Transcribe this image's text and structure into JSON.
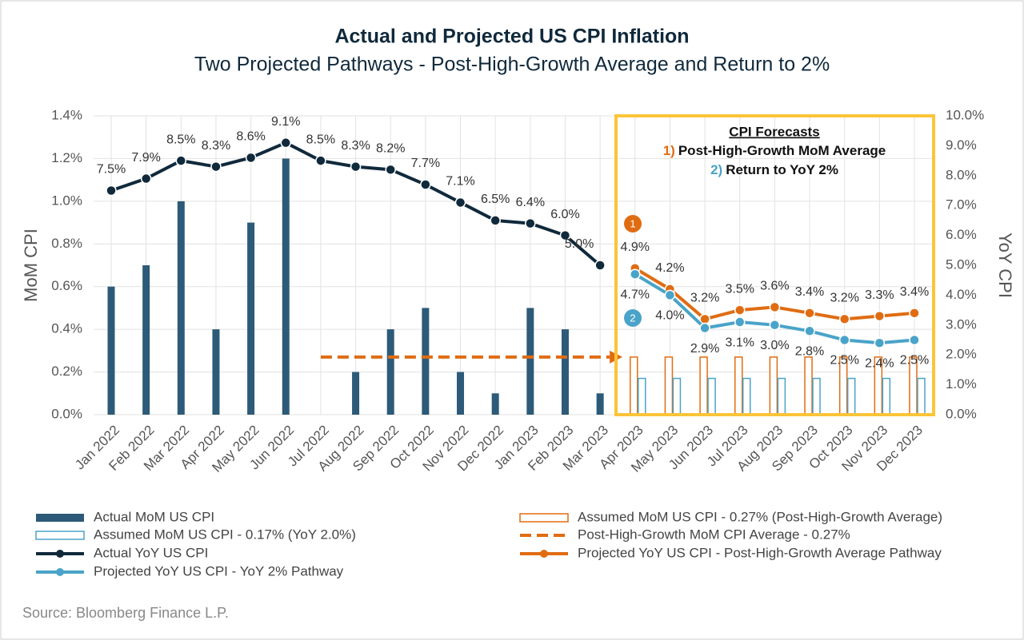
{
  "chart_data": {
    "type": "bar",
    "title": "Actual and Projected US CPI Inflation",
    "subtitle": "Two Projected Pathways - Post-High-Growth Average and Return to 2%",
    "y_label": "MoM CPI",
    "y2_label": "YoY CPI",
    "source": "Source: Bloomberg Finance L.P.",
    "categories": [
      "Jan 2022",
      "Feb 2022",
      "Mar 2022",
      "Apr 2022",
      "May 2022",
      "Jun 2022",
      "Jul 2022",
      "Aug 2022",
      "Sep 2022",
      "Oct 2022",
      "Nov 2022",
      "Dec 2022",
      "Jan 2023",
      "Feb 2023",
      "Mar 2023",
      "Apr 2023",
      "May 2023",
      "Jun 2023",
      "Jul 2023",
      "Aug 2023",
      "Sep 2023",
      "Oct 2023",
      "Nov 2023",
      "Dec 2023"
    ],
    "ylim": [
      0,
      1.4
    ],
    "yticks": [
      {
        "value": 0,
        "label": "0.0%"
      },
      {
        "value": 0.2,
        "label": "0.2%"
      },
      {
        "value": 0.4,
        "label": "0.4%"
      },
      {
        "value": 0.6,
        "label": "0.6%"
      },
      {
        "value": 0.8,
        "label": "0.8%"
      },
      {
        "value": 1.0,
        "label": "1.0%"
      },
      {
        "value": 1.2,
        "label": "1.2%"
      },
      {
        "value": 1.4,
        "label": "1.4%"
      }
    ],
    "y2lim": [
      0,
      10
    ],
    "y2ticks": [
      {
        "value": 0,
        "label": "0.0%"
      },
      {
        "value": 1,
        "label": "1.0%"
      },
      {
        "value": 2,
        "label": "2.0%"
      },
      {
        "value": 3,
        "label": "3.0%"
      },
      {
        "value": 4,
        "label": "4.0%"
      },
      {
        "value": 5,
        "label": "5.0%"
      },
      {
        "value": 6,
        "label": "6.0%"
      },
      {
        "value": 7,
        "label": "7.0%"
      },
      {
        "value": 8,
        "label": "8.0%"
      },
      {
        "value": 9,
        "label": "9.0%"
      },
      {
        "value": 10,
        "label": "10.0%"
      }
    ],
    "grid": true,
    "series": [
      {
        "name": "Actual MoM US CPI",
        "type": "bar",
        "color": "#2d5a78",
        "values": [
          0.6,
          0.7,
          1.0,
          0.4,
          0.9,
          1.2,
          0,
          0.2,
          0.4,
          0.5,
          0.2,
          0.1,
          0.5,
          0.4,
          0.1,
          null,
          null,
          null,
          null,
          null,
          null,
          null,
          null,
          null
        ]
      },
      {
        "name": "Assumed MoM US CPI - 0.27% (Post-High-Growth Average)",
        "type": "outline-bar",
        "color": "#e06c12",
        "values": [
          null,
          null,
          null,
          null,
          null,
          null,
          null,
          null,
          null,
          null,
          null,
          null,
          null,
          null,
          null,
          0.27,
          0.27,
          0.27,
          0.27,
          0.27,
          0.27,
          0.27,
          0.27,
          0.27
        ]
      },
      {
        "name": "Assumed MoM US CPI - 0.17% (YoY 2.0%)",
        "type": "outline-bar",
        "color": "#4aa3c8",
        "values": [
          null,
          null,
          null,
          null,
          null,
          null,
          null,
          null,
          null,
          null,
          null,
          null,
          null,
          null,
          null,
          0.17,
          0.17,
          0.17,
          0.17,
          0.17,
          0.17,
          0.17,
          0.17,
          0.17
        ]
      },
      {
        "name": "Actual YoY US CPI",
        "type": "line",
        "axis": "y2",
        "color": "#10293b",
        "values": [
          7.5,
          7.9,
          8.5,
          8.3,
          8.6,
          9.1,
          8.5,
          8.3,
          8.2,
          7.7,
          7.1,
          6.5,
          6.4,
          6.0,
          5.0,
          null,
          null,
          null,
          null,
          null,
          null,
          null,
          null,
          null
        ],
        "value_labels": [
          "7.5%",
          "7.9%",
          "8.5%",
          "8.3%",
          "8.6%",
          "9.1%",
          "8.5%",
          "8.3%",
          "8.2%",
          "7.7%",
          "7.1%",
          "6.5%",
          "6.4%",
          "6.0%",
          "5.0%",
          null,
          null,
          null,
          null,
          null,
          null,
          null,
          null,
          null
        ]
      },
      {
        "name": "Projected YoY US CPI - Post-High-Growth Average Pathway",
        "type": "line",
        "axis": "y2",
        "color": "#e06c12",
        "values": [
          null,
          null,
          null,
          null,
          null,
          null,
          null,
          null,
          null,
          null,
          null,
          null,
          null,
          null,
          null,
          4.9,
          4.2,
          3.2,
          3.5,
          3.6,
          3.4,
          3.2,
          3.3,
          3.4
        ],
        "value_labels": [
          null,
          null,
          null,
          null,
          null,
          null,
          null,
          null,
          null,
          null,
          null,
          null,
          null,
          null,
          null,
          "4.9%",
          "4.2%",
          "3.2%",
          "3.5%",
          "3.6%",
          "3.4%",
          "3.2%",
          "3.3%",
          "3.4%"
        ]
      },
      {
        "name": "Projected YoY US CPI - YoY 2% Pathway",
        "type": "line",
        "axis": "y2",
        "color": "#4aa3c8",
        "values": [
          null,
          null,
          null,
          null,
          null,
          null,
          null,
          null,
          null,
          null,
          null,
          null,
          null,
          null,
          null,
          4.7,
          4.0,
          2.9,
          3.1,
          3.0,
          2.8,
          2.5,
          2.4,
          2.5
        ],
        "value_labels": [
          null,
          null,
          null,
          null,
          null,
          null,
          null,
          null,
          null,
          null,
          null,
          null,
          null,
          null,
          null,
          "4.7%",
          "4.0%",
          "2.9%",
          "3.1%",
          "3.0%",
          "2.8%",
          "2.5%",
          "2.4%",
          "2.5%"
        ]
      },
      {
        "name": "Post-High-Growth MoM CPI Average - 0.27%",
        "type": "dashed-line",
        "color": "#e06c12",
        "values": [
          null,
          null,
          null,
          null,
          null,
          null,
          0.27,
          0.27,
          0.27,
          0.27,
          0.27,
          0.27,
          0.27,
          0.27,
          0.27,
          null,
          null,
          null,
          null,
          null,
          null,
          null,
          null,
          null
        ]
      }
    ],
    "annotation": {
      "heading": "CPI Forecasts",
      "items": [
        {
          "num": "1)",
          "text": "Post-High-Growth MoM Average"
        },
        {
          "num": "2)",
          "text": "Return to YoY 2%"
        }
      ],
      "markers": [
        "1",
        "2"
      ]
    }
  }
}
